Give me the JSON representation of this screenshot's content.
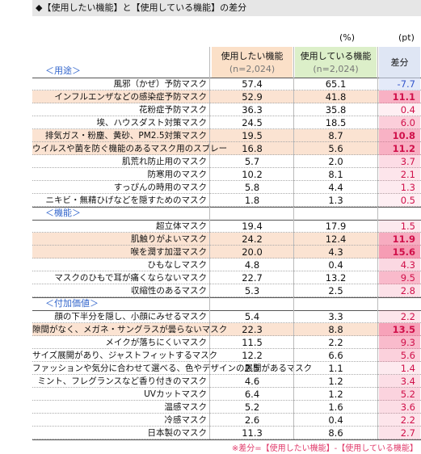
{
  "title": "◆【使用したい機能】と【使用している機能】の差分",
  "units": {
    "value": "(%)",
    "diff": "(pt)"
  },
  "columns": [
    {
      "label": "使用したい機能",
      "n": "(n=2,024)"
    },
    {
      "label": "使用している機能",
      "n": "(n=2,024)"
    },
    {
      "label": "差分"
    }
  ],
  "sections": [
    {
      "label": "＜用途＞",
      "rows": [
        {
          "label": "風邪（かぜ）予防マスク",
          "values": [
            "57.4",
            "65.1",
            "-7.7"
          ],
          "highlight": false
        },
        {
          "label": "インフルエンザなどの感染症予防マスク",
          "values": [
            "52.9",
            "41.8",
            "11.1"
          ],
          "highlight": true
        },
        {
          "label": "花粉症予防マスク",
          "values": [
            "36.3",
            "35.8",
            "0.4"
          ],
          "highlight": false
        },
        {
          "label": "埃、ハウスダスト対策マスク",
          "values": [
            "24.5",
            "18.5",
            "6.0"
          ],
          "highlight": false
        },
        {
          "label": "排気ガス・粉塵、黄砂、PM2.5対策マスク",
          "values": [
            "19.5",
            "8.7",
            "10.8"
          ],
          "highlight": true
        },
        {
          "label": "ウイルスや菌を防ぐ機能のあるマスク用のスプレー",
          "values": [
            "16.8",
            "5.6",
            "11.2"
          ],
          "highlight": true
        },
        {
          "label": "肌荒れ防止用のマスク",
          "values": [
            "5.7",
            "2.0",
            "3.7"
          ],
          "highlight": false
        },
        {
          "label": "防寒用のマスク",
          "values": [
            "10.2",
            "8.1",
            "2.1"
          ],
          "highlight": false
        },
        {
          "label": "すっぴんの時用のマスク",
          "values": [
            "5.8",
            "4.4",
            "1.3"
          ],
          "highlight": false
        },
        {
          "label": "ニキビ・無精ひげなどを隠すためのマスク",
          "values": [
            "1.8",
            "1.3",
            "0.5"
          ],
          "highlight": false
        }
      ]
    },
    {
      "label": "＜機能＞",
      "rows": [
        {
          "label": "超立体マスク",
          "values": [
            "19.4",
            "17.9",
            "1.5"
          ],
          "highlight": false
        },
        {
          "label": "肌触りがよいマスク",
          "values": [
            "24.2",
            "12.4",
            "11.9"
          ],
          "highlight": true
        },
        {
          "label": "喉を潤す加湿マスク",
          "values": [
            "20.0",
            "4.3",
            "15.6"
          ],
          "highlight": true
        },
        {
          "label": "ひもなしマスク",
          "values": [
            "4.8",
            "0.4",
            "4.3"
          ],
          "highlight": false
        },
        {
          "label": "マスクのひもで耳が痛くならないマスク",
          "values": [
            "22.7",
            "13.2",
            "9.5"
          ],
          "highlight": false
        },
        {
          "label": "収縮性のあるマスク",
          "values": [
            "5.3",
            "2.5",
            "2.8"
          ],
          "highlight": false
        }
      ]
    },
    {
      "label": "＜付加価値＞",
      "rows": [
        {
          "label": "顔の下半分を隠し、小顔にみせるマスク",
          "values": [
            "5.4",
            "3.3",
            "2.2"
          ],
          "highlight": false
        },
        {
          "label": "隙間がなく、メガネ・サングラスが曇らないマスク",
          "values": [
            "22.3",
            "8.8",
            "13.5"
          ],
          "highlight": true
        },
        {
          "label": "メイクが落ちにくいマスク",
          "values": [
            "11.5",
            "2.2",
            "9.3"
          ],
          "highlight": false
        },
        {
          "label": "サイズ展開があり、ジャストフィットするマスク",
          "values": [
            "12.2",
            "6.6",
            "5.6"
          ],
          "highlight": false
        },
        {
          "label": "ファッションや気分に合わせて選べる、色やデザインの展開があるマスク",
          "values": [
            "2.5",
            "1.1",
            "1.4"
          ],
          "highlight": false
        },
        {
          "label": "ミント、フレグランスなど香り付きのマスク",
          "values": [
            "4.6",
            "1.2",
            "3.4"
          ],
          "highlight": false
        },
        {
          "label": "UVカットマスク",
          "values": [
            "6.4",
            "1.2",
            "5.2"
          ],
          "highlight": false
        },
        {
          "label": "温感マスク",
          "values": [
            "5.2",
            "1.6",
            "3.6"
          ],
          "highlight": false
        },
        {
          "label": "冷感マスク",
          "values": [
            "2.6",
            "0.4",
            "2.2"
          ],
          "highlight": false
        },
        {
          "label": "日本製のマスク",
          "values": [
            "11.3",
            "8.6",
            "2.7"
          ],
          "highlight": false
        }
      ]
    }
  ],
  "footnote": "※差分=【使用したい機能】-【使用している機能】"
}
